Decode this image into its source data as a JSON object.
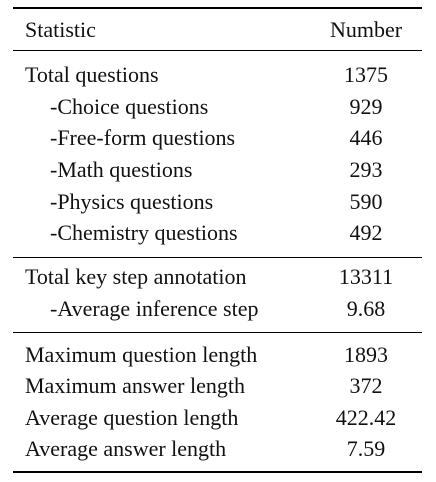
{
  "table": {
    "header": {
      "statistic": "Statistic",
      "number": "Number"
    },
    "group1": [
      {
        "label": "Total questions",
        "value": "1375"
      },
      {
        "label": "-Choice questions",
        "value": "929"
      },
      {
        "label": "-Free-form questions",
        "value": "446"
      },
      {
        "label": "-Math questions",
        "value": "293"
      },
      {
        "label": "-Physics questions",
        "value": "590"
      },
      {
        "label": "-Chemistry questions",
        "value": "492"
      }
    ],
    "group2": [
      {
        "label": "Total key step annotation",
        "value": "13311"
      },
      {
        "label": "-Average inference step",
        "value": "9.68"
      }
    ],
    "group3": [
      {
        "label": "Maximum question length",
        "value": "1893"
      },
      {
        "label": "Maximum answer length",
        "value": "372"
      },
      {
        "label": "Average question length",
        "value": "422.42"
      },
      {
        "label": "Average answer length",
        "value": "7.59"
      }
    ]
  }
}
